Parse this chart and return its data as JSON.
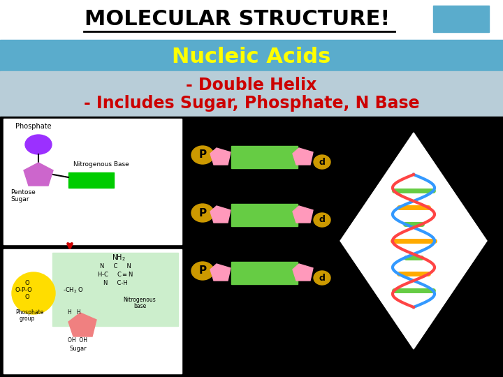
{
  "title": "MOLECULAR STRUCTURE!",
  "subtitle": "Nucleic Acids",
  "line1": "- Double Helix",
  "line2": "- Includes Sugar, Phosphate, N Base",
  "title_color": "#000000",
  "subtitle_color": "#ffff00",
  "subtitle_bg": "#5aaccc",
  "subtext_color": "#cc0000",
  "subtext_bg": "#b8cdd8",
  "bottom_bg": "#000000",
  "corner_rect_color": "#5aaccc",
  "phosphate_color": "#9b30ff",
  "nitrogenous_base_color": "#00cc00",
  "sugar_color": "#cc66cc",
  "nucleotide_p_color": "#cc9900",
  "nucleotide_sugar_color": "#ff99bb",
  "nucleotide_base_color": "#66cc44",
  "arrow_color": "#cc0000",
  "chem_bg": "#cceecc",
  "white": "#ffffff",
  "black": "#000000",
  "yellow_phosphate": "#ffdd00",
  "pink_sugar": "#f08080"
}
